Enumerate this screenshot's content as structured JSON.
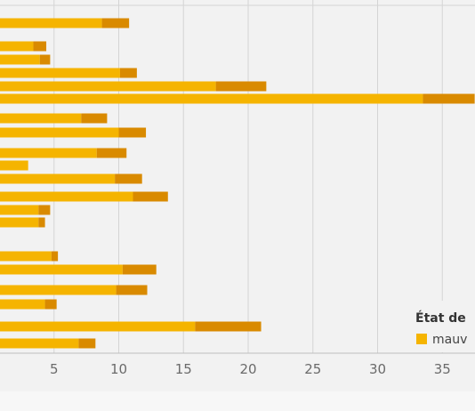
{
  "chart_data": {
    "type": "bar",
    "orientation": "horizontal",
    "stacked": true,
    "xlim": [
      0,
      37
    ],
    "x_ticks": [
      "5",
      "10",
      "15",
      "20",
      "25",
      "30",
      "35"
    ],
    "x_tick_values": [
      5,
      10,
      15,
      20,
      25,
      30,
      35
    ],
    "grid": true,
    "legend": {
      "title": "État de",
      "placement": "bottom-right",
      "items": [
        "mauv"
      ]
    },
    "series": [
      {
        "name": "mauv",
        "color": "#f5b400",
        "values": [
          8.7,
          3.4,
          3.9,
          10.1,
          17.5,
          33.5,
          7.1,
          10.0,
          8.3,
          3.0,
          9.7,
          11.1,
          3.8,
          3.8,
          0.2,
          4.8,
          10.3,
          9.8,
          4.3,
          15.9,
          6.9
        ]
      },
      {
        "name": "",
        "color": "#d98a00",
        "values": [
          2.1,
          1.0,
          0.8,
          1.3,
          3.9,
          4.0,
          2.0,
          2.1,
          2.3,
          0.0,
          2.1,
          2.7,
          0.9,
          0.5,
          0.0,
          0.5,
          2.6,
          2.4,
          0.9,
          5.1,
          1.3
        ]
      }
    ]
  }
}
